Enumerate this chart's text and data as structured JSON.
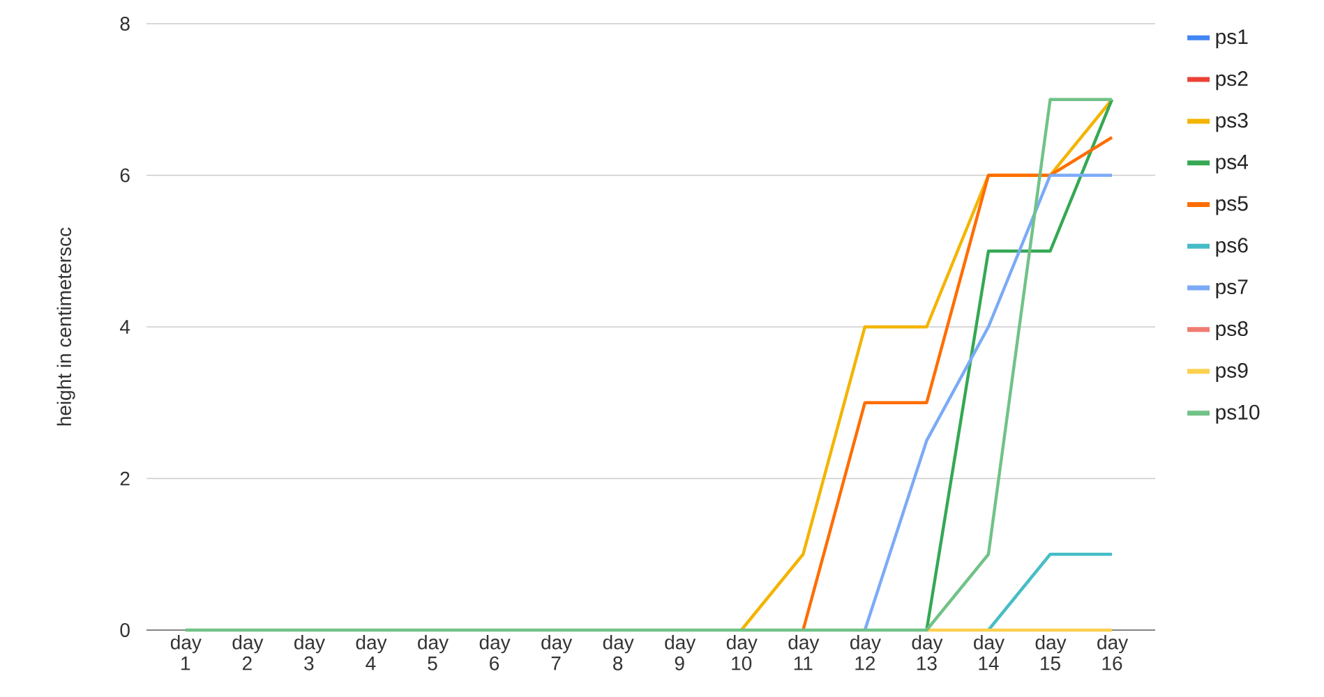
{
  "chart_data": {
    "type": "line",
    "ylabel": "height in centimeterscc",
    "categories": [
      "day 1",
      "day 2",
      "day 3",
      "day 4",
      "day 5",
      "day 6",
      "day 7",
      "day 8",
      "day 9",
      "day 10",
      "day 11",
      "day 12",
      "day 13",
      "day 14",
      "day 15",
      "day 16"
    ],
    "series": [
      {
        "name": "ps1",
        "color": "#4285f4",
        "values": [
          null,
          null,
          null,
          null,
          null,
          null,
          null,
          null,
          null,
          null,
          null,
          null,
          null,
          null,
          null,
          null
        ]
      },
      {
        "name": "ps2",
        "color": "#ea4335",
        "values": [
          null,
          null,
          null,
          null,
          null,
          null,
          null,
          null,
          null,
          null,
          null,
          null,
          null,
          null,
          null,
          null
        ]
      },
      {
        "name": "ps3",
        "color": "#f4b400",
        "values": [
          null,
          null,
          null,
          null,
          null,
          null,
          null,
          null,
          null,
          0,
          1,
          4,
          4,
          6,
          6,
          7
        ]
      },
      {
        "name": "ps4",
        "color": "#34a853",
        "values": [
          null,
          null,
          null,
          null,
          null,
          null,
          null,
          null,
          null,
          null,
          null,
          null,
          0,
          5,
          5,
          7
        ]
      },
      {
        "name": "ps5",
        "color": "#ff6d01",
        "values": [
          null,
          null,
          null,
          null,
          null,
          null,
          null,
          null,
          null,
          null,
          0,
          3,
          3,
          6,
          6,
          6.5
        ]
      },
      {
        "name": "ps6",
        "color": "#46bdc6",
        "values": [
          null,
          null,
          null,
          null,
          null,
          null,
          null,
          null,
          null,
          null,
          null,
          null,
          null,
          0,
          1,
          1
        ]
      },
      {
        "name": "ps7",
        "color": "#7baaf7",
        "values": [
          null,
          null,
          null,
          null,
          null,
          null,
          null,
          null,
          null,
          null,
          null,
          0,
          2.5,
          4,
          6,
          6
        ]
      },
      {
        "name": "ps8",
        "color": "#f07b72",
        "values": [
          null,
          null,
          null,
          null,
          null,
          null,
          null,
          null,
          null,
          null,
          null,
          null,
          null,
          null,
          null,
          null
        ]
      },
      {
        "name": "ps9",
        "color": "#fcd04f",
        "values": [
          null,
          null,
          null,
          null,
          null,
          null,
          null,
          null,
          null,
          null,
          null,
          null,
          0,
          0,
          0,
          0
        ]
      },
      {
        "name": "ps10",
        "color": "#71c287",
        "values": [
          0,
          0,
          0,
          0,
          0,
          0,
          0,
          0,
          0,
          0,
          0,
          0,
          0,
          1,
          7,
          7
        ]
      }
    ],
    "ylim": [
      0,
      8
    ],
    "yticks": [
      0,
      2,
      4,
      6,
      8
    ],
    "grid": "y",
    "legend": "right",
    "marker": "none",
    "line_style": "solid"
  }
}
